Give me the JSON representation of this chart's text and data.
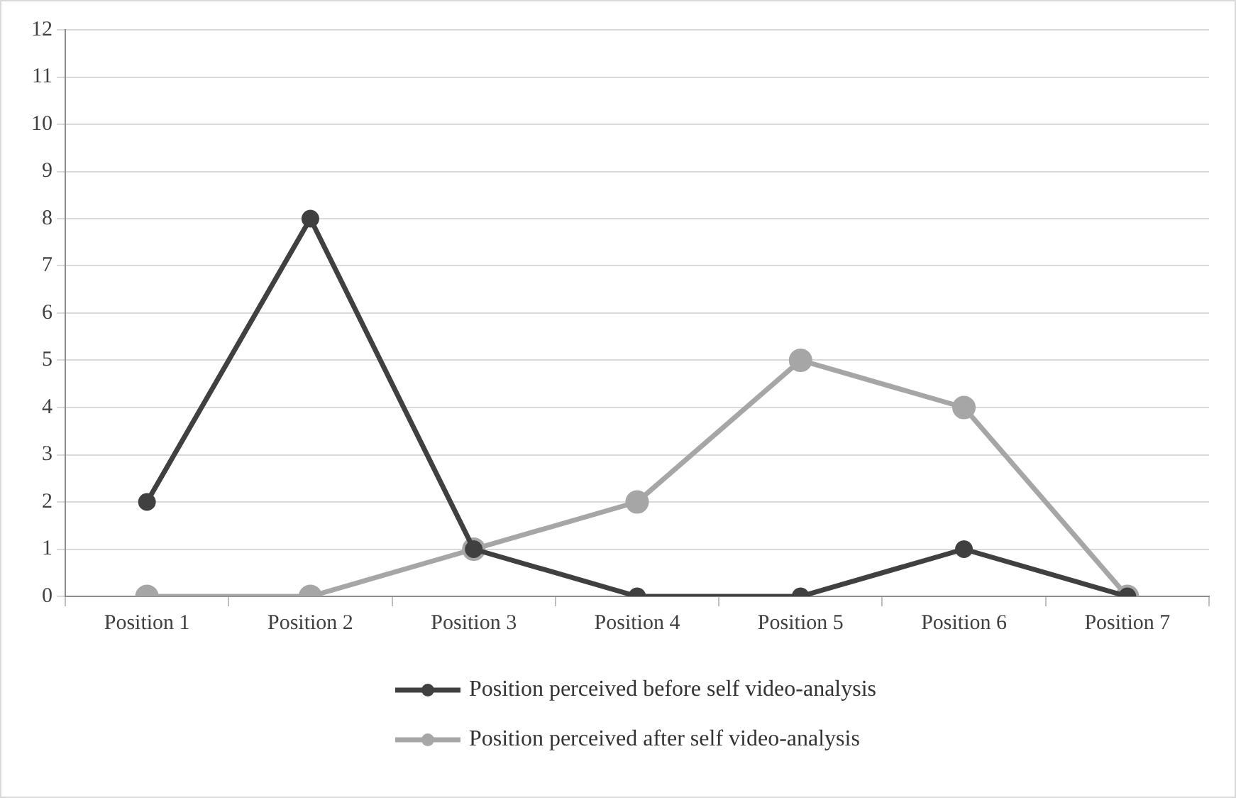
{
  "chart_data": {
    "type": "line",
    "categories": [
      "Position 1",
      "Position 2",
      "Position 3",
      "Position 4",
      "Position 5",
      "Position 6",
      "Position 7"
    ],
    "series": [
      {
        "name": "Position perceived before self video-analysis",
        "color": "#404040",
        "values": [
          2,
          8,
          1,
          0,
          0,
          1,
          0
        ]
      },
      {
        "name": "Position perceived after self video-analysis",
        "color": "#a6a6a6",
        "values": [
          0,
          0,
          1,
          2,
          5,
          4,
          0
        ]
      }
    ],
    "ylim": [
      0,
      12
    ],
    "yticks": [
      0,
      1,
      2,
      3,
      4,
      5,
      6,
      7,
      8,
      9,
      10,
      11,
      12
    ],
    "grid": "y",
    "legend": "bottom",
    "marker": "circle",
    "line_style": "solid"
  }
}
